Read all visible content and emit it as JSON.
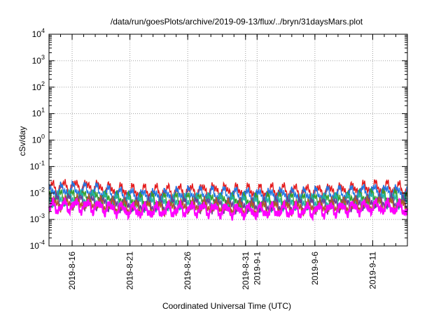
{
  "chart_data": {
    "type": "line",
    "title": "/data/run/goesPlots/archive/2019-09-13/flux/../bryn/31daysMars.plot",
    "xlabel": "Coordinated Universal Time (UTC)",
    "ylabel": "cSv/day",
    "yscale": "log",
    "ylim": [
      0.0001,
      10000
    ],
    "xlim_days": [
      0,
      31
    ],
    "grid": true,
    "x_ticks": [
      {
        "label": "2019-8-16",
        "day": 2
      },
      {
        "label": "2019-8-21",
        "day": 7
      },
      {
        "label": "2019-8-26",
        "day": 12
      },
      {
        "label": "2019-8-31",
        "day": 17
      },
      {
        "label": "2019-9-1",
        "day": 18
      },
      {
        "label": "2019-9-6",
        "day": 23
      },
      {
        "label": "2019-9-11",
        "day": 28
      }
    ],
    "y_ticks": [
      {
        "base": "10",
        "exp": "-4",
        "value": 0.0001
      },
      {
        "base": "10",
        "exp": "-3",
        "value": 0.001
      },
      {
        "base": "10",
        "exp": "-2",
        "value": 0.01
      },
      {
        "base": "10",
        "exp": "-1",
        "value": 0.1
      },
      {
        "base": "10",
        "exp": "0",
        "value": 1
      },
      {
        "base": "10",
        "exp": "1",
        "value": 10
      },
      {
        "base": "10",
        "exp": "2",
        "value": 100
      },
      {
        "base": "10",
        "exp": "3",
        "value": 1000
      },
      {
        "base": "10",
        "exp": "4",
        "value": 10000
      }
    ],
    "series": [
      {
        "color": "#e41a1c",
        "day": [
          0,
          2,
          4,
          6,
          8,
          10,
          12,
          14,
          16,
          18,
          20,
          22,
          24,
          26,
          28,
          30,
          31
        ],
        "values": [
          0.015,
          0.018,
          0.016,
          0.012,
          0.011,
          0.011,
          0.012,
          0.013,
          0.012,
          0.011,
          0.012,
          0.011,
          0.012,
          0.013,
          0.016,
          0.015,
          0.012
        ]
      },
      {
        "color": "#1f78e4",
        "day": [
          0,
          2,
          4,
          6,
          8,
          10,
          12,
          14,
          16,
          18,
          20,
          22,
          24,
          26,
          28,
          30,
          31
        ],
        "values": [
          0.011,
          0.013,
          0.012,
          0.009,
          0.008,
          0.008,
          0.009,
          0.009,
          0.009,
          0.008,
          0.009,
          0.008,
          0.009,
          0.01,
          0.012,
          0.011,
          0.009
        ]
      },
      {
        "color": "#33a02c",
        "day": [
          0,
          2,
          4,
          6,
          8,
          10,
          12,
          14,
          16,
          18,
          20,
          22,
          24,
          26,
          28,
          30,
          31
        ],
        "values": [
          0.0065,
          0.0075,
          0.007,
          0.0055,
          0.005,
          0.005,
          0.0055,
          0.0055,
          0.005,
          0.0048,
          0.0052,
          0.005,
          0.0053,
          0.0058,
          0.007,
          0.0065,
          0.0055
        ]
      },
      {
        "color": "#20b2aa",
        "day": [
          0,
          2,
          4,
          6,
          8,
          10,
          12,
          14,
          16,
          18,
          20,
          22,
          24,
          26,
          28,
          30,
          31
        ],
        "values": [
          0.0055,
          0.0062,
          0.0058,
          0.0046,
          0.0042,
          0.0042,
          0.0046,
          0.0046,
          0.0042,
          0.004,
          0.0044,
          0.0042,
          0.0045,
          0.0049,
          0.0058,
          0.0055,
          0.0046
        ]
      },
      {
        "color": "#6a3d9a",
        "day": [
          0,
          2,
          4,
          6,
          8,
          10,
          12,
          14,
          16,
          18,
          20,
          22,
          24,
          26,
          28,
          30,
          31
        ],
        "values": [
          0.0045,
          0.005,
          0.0047,
          0.0037,
          0.0034,
          0.0034,
          0.0037,
          0.0037,
          0.0034,
          0.0032,
          0.0035,
          0.0034,
          0.0036,
          0.004,
          0.0047,
          0.0045,
          0.0037
        ]
      },
      {
        "color": "#b15928",
        "day": [
          0,
          2,
          4,
          6,
          8,
          10,
          12,
          14,
          16,
          18,
          20,
          22,
          24,
          26,
          28,
          30,
          31
        ],
        "values": [
          0.0038,
          0.0043,
          0.004,
          0.0032,
          0.0029,
          0.0029,
          0.0032,
          0.0032,
          0.0029,
          0.0027,
          0.003,
          0.0029,
          0.0031,
          0.0034,
          0.004,
          0.0038,
          0.0032
        ]
      },
      {
        "color": "#ff00ff",
        "day": [
          0,
          2,
          4,
          6,
          8,
          10,
          12,
          14,
          16,
          18,
          20,
          22,
          24,
          26,
          28,
          30,
          31
        ],
        "values": [
          0.0028,
          0.0033,
          0.003,
          0.0024,
          0.0021,
          0.0022,
          0.0024,
          0.0024,
          0.0021,
          0.002,
          0.0022,
          0.0021,
          0.0023,
          0.0026,
          0.003,
          0.0028,
          0.0024
        ]
      }
    ]
  }
}
